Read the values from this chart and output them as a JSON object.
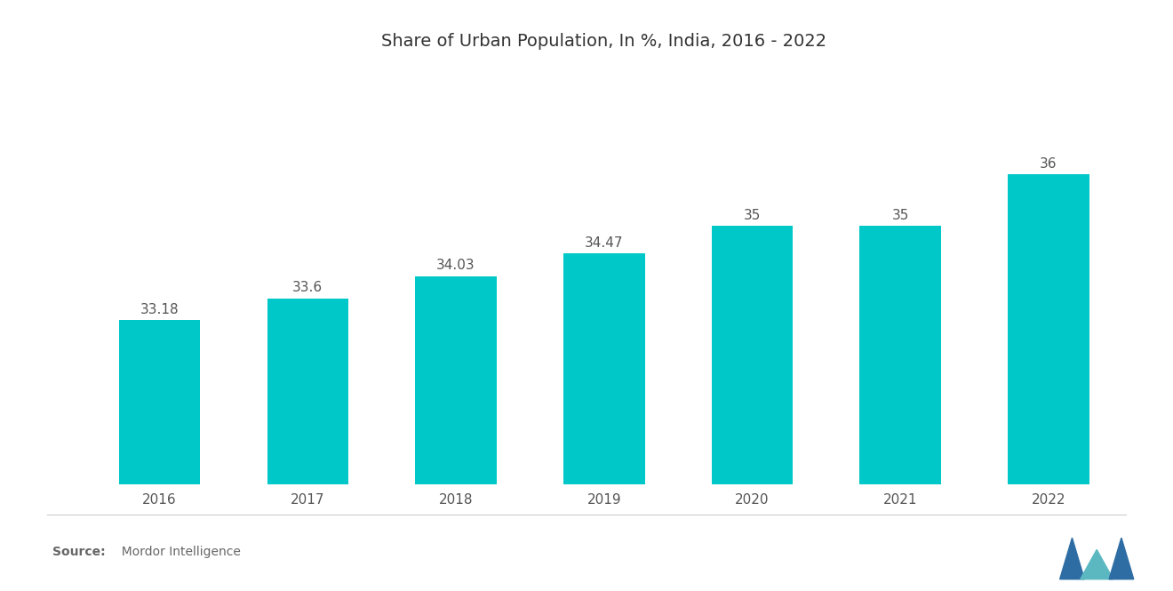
{
  "title": "Share of Urban Population, In %, India, 2016 - 2022",
  "years": [
    "2016",
    "2017",
    "2018",
    "2019",
    "2020",
    "2021",
    "2022"
  ],
  "values": [
    33.18,
    33.6,
    34.03,
    34.47,
    35,
    35,
    36
  ],
  "bar_color": "#00C8C8",
  "background_color": "#ffffff",
  "title_fontsize": 14,
  "label_fontsize": 11,
  "tick_fontsize": 11,
  "bar_width": 0.55,
  "ylim": [
    30,
    38
  ],
  "source_bold": "Source:",
  "source_text": "  Mordor Intelligence"
}
